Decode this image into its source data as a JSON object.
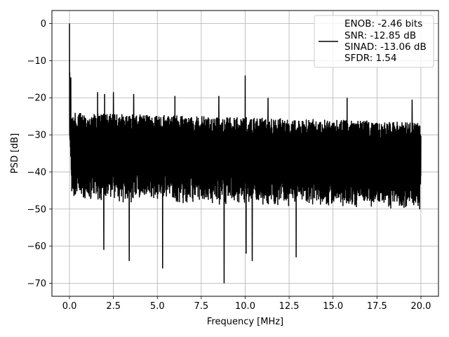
{
  "chart_data": {
    "type": "line",
    "xlabel": "Frequency [MHz]",
    "ylabel": "PSD [dB]",
    "xlim": [
      -1.0,
      21.0
    ],
    "ylim": [
      -73.5,
      3.5
    ],
    "xticks": [
      0.0,
      2.5,
      5.0,
      7.5,
      10.0,
      12.5,
      15.0,
      17.5,
      20.0
    ],
    "xtick_labels": [
      "0.0",
      "2.5",
      "5.0",
      "7.5",
      "10.0",
      "12.5",
      "15.0",
      "17.5",
      "20.0"
    ],
    "yticks": [
      0,
      -10,
      -20,
      -30,
      -40,
      -50,
      -60,
      -70
    ],
    "ytick_labels": [
      "0",
      "−10",
      "−20",
      "−30",
      "−40",
      "−50",
      "−60",
      "−70"
    ],
    "grid": true,
    "legend_position": "top-right",
    "series": [
      {
        "color": "#000000",
        "x_range": [
          0.0,
          20.0
        ],
        "noise_floor_db": [
          -45,
          -24
        ],
        "peaks": [
          {
            "x": 0.0,
            "y": 0
          },
          {
            "x": 0.02,
            "y": -12
          },
          {
            "x": 10.0,
            "y": -14
          },
          {
            "x": 1.6,
            "y": -18.5
          },
          {
            "x": 2.0,
            "y": -19
          },
          {
            "x": 2.5,
            "y": -18.5
          },
          {
            "x": 3.65,
            "y": -19
          },
          {
            "x": 6.0,
            "y": -19.5
          },
          {
            "x": 8.5,
            "y": -19.5
          },
          {
            "x": 11.3,
            "y": -20
          },
          {
            "x": 15.8,
            "y": -20
          },
          {
            "x": 19.5,
            "y": -20.5
          }
        ],
        "dips": [
          {
            "x": 1.95,
            "y": -61
          },
          {
            "x": 3.4,
            "y": -64
          },
          {
            "x": 5.3,
            "y": -66
          },
          {
            "x": 8.8,
            "y": -70
          },
          {
            "x": 10.05,
            "y": -62
          },
          {
            "x": 10.4,
            "y": -64
          },
          {
            "x": 12.9,
            "y": -63
          }
        ]
      }
    ],
    "legend_lines": [
      "ENOB: -2.46 bits",
      "SNR: -12.85 dB",
      "SINAD: -13.06 dB",
      "SFDR: 1.54"
    ]
  }
}
